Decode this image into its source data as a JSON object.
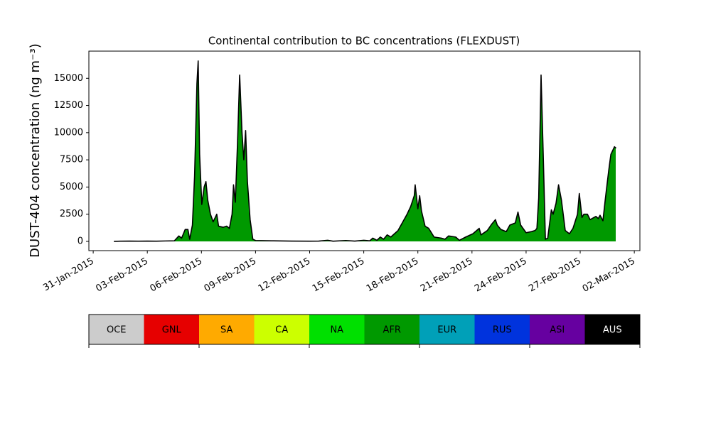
{
  "chart_data": {
    "type": "stackedarea",
    "title": "Continental contribution to BC concentrations (FLEXDUST)",
    "ylabel": "DUST-404 concentration (ng m⁻³)",
    "x": [
      1.17,
      1.5,
      2.0,
      2.5,
      3.0,
      3.5,
      4.0,
      4.5,
      4.75,
      4.9,
      5.1,
      5.25,
      5.35,
      5.5,
      5.62,
      5.75,
      5.82,
      5.9,
      6.02,
      6.15,
      6.25,
      6.35,
      6.5,
      6.65,
      6.85,
      6.95,
      7.2,
      7.4,
      7.55,
      7.7,
      7.78,
      7.88,
      8.0,
      8.12,
      8.25,
      8.35,
      8.45,
      8.55,
      8.7,
      8.85,
      9.0,
      10.0,
      11.0,
      12.0,
      12.5,
      13.0,
      13.3,
      14.0,
      14.5,
      15.0,
      15.33,
      15.5,
      15.73,
      15.92,
      16.1,
      16.3,
      16.5,
      16.7,
      16.9,
      17.1,
      17.4,
      17.6,
      17.8,
      17.85,
      18.0,
      18.1,
      18.2,
      18.4,
      18.6,
      18.9,
      19.3,
      19.5,
      19.7,
      20.1,
      20.3,
      20.65,
      21.05,
      21.4,
      21.5,
      21.85,
      22.1,
      22.3,
      22.4,
      22.6,
      22.9,
      23.1,
      23.4,
      23.55,
      23.7,
      24.0,
      24.3,
      24.5,
      24.6,
      24.7,
      24.83,
      24.95,
      25.07,
      25.2,
      25.4,
      25.5,
      25.66,
      25.8,
      25.96,
      26.17,
      26.4,
      26.6,
      26.85,
      26.95,
      27.1,
      27.2,
      27.4,
      27.55,
      27.87,
      28.0,
      28.1,
      28.26,
      28.4,
      28.58,
      28.7,
      28.9,
      28.97
    ],
    "series": [
      {
        "name": "OCE",
        "color": "#cccccc",
        "values": [
          0,
          0,
          0,
          0,
          0,
          0,
          0,
          0,
          0,
          0,
          0,
          0,
          0,
          0,
          0,
          0,
          0,
          0,
          0,
          0,
          0,
          0,
          0,
          0,
          0,
          0,
          0,
          0,
          0,
          0,
          0,
          0,
          0,
          0,
          0,
          0,
          0,
          0,
          0,
          0,
          0,
          0,
          0,
          0,
          0,
          0,
          0,
          0,
          0,
          0,
          0,
          0,
          0,
          0,
          0,
          0,
          0,
          0,
          0,
          0,
          0,
          0,
          0,
          0,
          0,
          0,
          0,
          0,
          0,
          0,
          0,
          0,
          0,
          0,
          0,
          0,
          0,
          0,
          0,
          0,
          0,
          0,
          0,
          0,
          0,
          0,
          0,
          0,
          0,
          0,
          0,
          0,
          0,
          0,
          0,
          0,
          0,
          0,
          0,
          0,
          0,
          0,
          0,
          0,
          0,
          0,
          0,
          0,
          0,
          0,
          0,
          0,
          0,
          0,
          0,
          0,
          0,
          0,
          0,
          0,
          0
        ]
      },
      {
        "name": "GNL",
        "color": "#e60000",
        "values": [
          0,
          0,
          0,
          0,
          0,
          0,
          0,
          0,
          0,
          0,
          0,
          0,
          0,
          0,
          0,
          0,
          0,
          0,
          0,
          0,
          0,
          0,
          0,
          0,
          0,
          0,
          0,
          0,
          0,
          0,
          0,
          0,
          0,
          0,
          0,
          0,
          0,
          0,
          0,
          0,
          0,
          0,
          0,
          0,
          0,
          0,
          0,
          0,
          0,
          0,
          0,
          0,
          0,
          0,
          0,
          0,
          0,
          0,
          0,
          0,
          0,
          0,
          0,
          0,
          0,
          0,
          0,
          0,
          0,
          0,
          0,
          0,
          0,
          0,
          0,
          0,
          0,
          0,
          0,
          0,
          0,
          0,
          0,
          0,
          0,
          0,
          0,
          0,
          0,
          0,
          0,
          0,
          0,
          0,
          0,
          0,
          0,
          0,
          0,
          0,
          0,
          0,
          0,
          0,
          0,
          0,
          0,
          0,
          0,
          0,
          0,
          0,
          0,
          0,
          0,
          0,
          0,
          0,
          0,
          0,
          0
        ]
      },
      {
        "name": "SA",
        "color": "#ffaa00",
        "values": [
          0,
          0,
          0,
          0,
          0,
          0,
          0,
          0,
          0,
          0,
          0,
          0,
          0,
          0,
          0,
          0,
          0,
          0,
          0,
          0,
          0,
          0,
          0,
          0,
          0,
          0,
          0,
          0,
          0,
          0,
          0,
          0,
          0,
          0,
          0,
          0,
          0,
          0,
          0,
          0,
          0,
          0,
          0,
          0,
          0,
          0,
          0,
          0,
          0,
          0,
          0,
          0,
          0,
          0,
          0,
          0,
          0,
          0,
          0,
          0,
          0,
          0,
          0,
          0,
          0,
          0,
          0,
          0,
          0,
          0,
          0,
          0,
          0,
          0,
          0,
          0,
          0,
          0,
          0,
          0,
          0,
          0,
          0,
          0,
          0,
          0,
          0,
          0,
          0,
          0,
          0,
          0,
          0,
          0,
          0,
          0,
          0,
          0,
          0,
          0,
          0,
          0,
          0,
          0,
          0,
          0,
          0,
          0,
          0,
          0,
          0,
          0,
          0,
          0,
          0,
          0,
          0,
          0,
          0,
          0,
          0
        ]
      },
      {
        "name": "CA",
        "color": "#ccff00",
        "values": [
          0,
          0,
          0,
          0,
          0,
          0,
          0,
          0,
          0,
          0,
          0,
          0,
          0,
          0,
          0,
          0,
          0,
          0,
          0,
          0,
          0,
          0,
          0,
          0,
          0,
          0,
          0,
          0,
          0,
          0,
          0,
          0,
          0,
          0,
          0,
          0,
          0,
          0,
          0,
          0,
          0,
          0,
          0,
          0,
          0,
          0,
          0,
          0,
          0,
          0,
          0,
          0,
          0,
          0,
          0,
          0,
          0,
          0,
          0,
          0,
          0,
          0,
          0,
          0,
          0,
          0,
          0,
          0,
          0,
          0,
          0,
          0,
          0,
          0,
          0,
          0,
          0,
          0,
          0,
          0,
          0,
          0,
          0,
          0,
          0,
          0,
          0,
          0,
          0,
          0,
          0,
          0,
          0,
          0,
          0,
          0,
          0,
          0,
          0,
          0,
          0,
          0,
          0,
          0,
          0,
          0,
          0,
          0,
          0,
          0,
          0,
          0,
          0,
          0,
          0,
          0,
          0,
          0,
          0,
          0,
          0
        ]
      },
      {
        "name": "NA",
        "color": "#00e000",
        "values": [
          0,
          0,
          0,
          0,
          0,
          0,
          0,
          0,
          0,
          0,
          0,
          0,
          0,
          0,
          0,
          0,
          0,
          0,
          0,
          0,
          0,
          0,
          0,
          0,
          0,
          0,
          0,
          0,
          0,
          0,
          0,
          0,
          0,
          0,
          0,
          0,
          0,
          0,
          0,
          0,
          0,
          0,
          0,
          0,
          0,
          0,
          0,
          0,
          0,
          0,
          0,
          0,
          0,
          0,
          0,
          0,
          0,
          0,
          0,
          0,
          0,
          0,
          0,
          0,
          0,
          0,
          0,
          0,
          0,
          0,
          0,
          0,
          0,
          0,
          0,
          0,
          0,
          0,
          0,
          0,
          0,
          0,
          0,
          0,
          0,
          0,
          0,
          0,
          0,
          0,
          0,
          0,
          0,
          0,
          0,
          0,
          0,
          0,
          0,
          0,
          0,
          0,
          0,
          0,
          0,
          0,
          0,
          0,
          0,
          0,
          0,
          0,
          0,
          0,
          0,
          0,
          0,
          0,
          0,
          0,
          0
        ]
      },
      {
        "name": "AFR",
        "color": "#009900",
        "values": [
          0,
          20,
          30,
          20,
          30,
          20,
          40,
          50,
          500,
          300,
          1100,
          1100,
          200,
          1500,
          6000,
          14500,
          16600,
          8000,
          3400,
          5000,
          5500,
          3800,
          2500,
          1800,
          2500,
          1400,
          1300,
          1400,
          1200,
          2500,
          5200,
          3600,
          9000,
          15300,
          10000,
          7500,
          10200,
          5500,
          2000,
          200,
          80,
          50,
          30,
          20,
          30,
          100,
          20,
          80,
          30,
          100,
          50,
          300,
          100,
          400,
          200,
          600,
          400,
          700,
          1000,
          1600,
          2500,
          3200,
          4200,
          5200,
          3000,
          4200,
          2800,
          1400,
          1200,
          400,
          300,
          200,
          500,
          400,
          100,
          400,
          700,
          1200,
          600,
          1000,
          1600,
          2000,
          1500,
          1100,
          900,
          1500,
          1700,
          2700,
          1500,
          800,
          900,
          1000,
          1200,
          4000,
          15300,
          8000,
          200,
          300,
          2900,
          2500,
          3500,
          5200,
          3800,
          1000,
          700,
          1200,
          2500,
          4400,
          2200,
          2500,
          2500,
          2000,
          2300,
          2100,
          2400,
          1900,
          4000,
          6500,
          8000,
          8700,
          8600
        ]
      },
      {
        "name": "EUR",
        "color": "#00a0b8",
        "values": [
          0,
          0,
          0,
          0,
          0,
          0,
          0,
          0,
          0,
          0,
          0,
          0,
          0,
          0,
          0,
          0,
          0,
          0,
          0,
          0,
          0,
          0,
          0,
          0,
          0,
          0,
          0,
          0,
          0,
          0,
          0,
          0,
          0,
          0,
          0,
          0,
          0,
          0,
          0,
          0,
          0,
          0,
          0,
          0,
          0,
          0,
          0,
          0,
          0,
          0,
          0,
          0,
          0,
          0,
          0,
          0,
          0,
          0,
          0,
          0,
          0,
          0,
          0,
          0,
          0,
          0,
          0,
          0,
          0,
          0,
          0,
          0,
          0,
          0,
          0,
          0,
          0,
          0,
          0,
          0,
          0,
          0,
          0,
          0,
          0,
          0,
          0,
          0,
          0,
          0,
          0,
          0,
          0,
          0,
          0,
          0,
          0,
          0,
          0,
          0,
          0,
          0,
          0,
          0,
          0,
          0,
          0,
          0,
          0,
          0,
          0,
          0,
          0,
          0,
          0,
          0,
          0,
          0,
          0,
          0,
          0
        ]
      },
      {
        "name": "RUS",
        "color": "#0033dd",
        "values": [
          0,
          0,
          0,
          0,
          0,
          0,
          0,
          0,
          0,
          0,
          0,
          0,
          0,
          0,
          0,
          0,
          0,
          0,
          0,
          0,
          0,
          0,
          0,
          0,
          0,
          0,
          0,
          0,
          0,
          0,
          0,
          0,
          0,
          0,
          0,
          0,
          0,
          0,
          0,
          0,
          0,
          0,
          0,
          0,
          0,
          0,
          0,
          0,
          0,
          0,
          0,
          0,
          0,
          0,
          0,
          0,
          0,
          0,
          0,
          0,
          0,
          0,
          0,
          0,
          0,
          0,
          0,
          0,
          0,
          0,
          0,
          0,
          0,
          0,
          0,
          0,
          0,
          0,
          0,
          0,
          0,
          0,
          0,
          0,
          0,
          0,
          0,
          0,
          0,
          0,
          0,
          0,
          0,
          0,
          0,
          0,
          0,
          0,
          0,
          0,
          0,
          0,
          0,
          0,
          0,
          0,
          0,
          0,
          0,
          0,
          0,
          0,
          0,
          0,
          0,
          0,
          0,
          0,
          0,
          0,
          0
        ]
      },
      {
        "name": "ASI",
        "color": "#6600a0",
        "values": [
          0,
          0,
          0,
          0,
          0,
          0,
          0,
          0,
          0,
          0,
          0,
          0,
          0,
          0,
          0,
          0,
          0,
          0,
          0,
          0,
          0,
          0,
          0,
          0,
          0,
          0,
          0,
          0,
          0,
          0,
          0,
          0,
          0,
          0,
          0,
          0,
          0,
          0,
          0,
          0,
          0,
          0,
          0,
          0,
          0,
          0,
          0,
          0,
          0,
          0,
          0,
          0,
          0,
          0,
          0,
          0,
          0,
          0,
          0,
          0,
          0,
          0,
          0,
          0,
          0,
          0,
          0,
          0,
          0,
          0,
          0,
          0,
          0,
          0,
          0,
          0,
          0,
          0,
          0,
          0,
          0,
          0,
          0,
          0,
          0,
          0,
          0,
          0,
          0,
          0,
          0,
          0,
          0,
          0,
          0,
          0,
          0,
          0,
          0,
          0,
          0,
          0,
          0,
          0,
          0,
          0,
          0,
          0,
          0,
          0,
          0,
          0,
          0,
          0,
          0,
          0,
          0,
          0,
          0,
          0,
          0
        ]
      },
      {
        "name": "AUS",
        "color": "#000000",
        "values": [
          0,
          0,
          0,
          0,
          0,
          0,
          0,
          0,
          0,
          0,
          0,
          0,
          0,
          0,
          0,
          0,
          0,
          0,
          0,
          0,
          0,
          0,
          0,
          0,
          0,
          0,
          0,
          0,
          0,
          0,
          0,
          0,
          0,
          0,
          0,
          0,
          0,
          0,
          0,
          0,
          0,
          0,
          0,
          0,
          0,
          0,
          0,
          0,
          0,
          0,
          0,
          0,
          0,
          0,
          0,
          0,
          0,
          0,
          0,
          0,
          0,
          0,
          0,
          0,
          0,
          0,
          0,
          0,
          0,
          0,
          0,
          0,
          0,
          0,
          0,
          0,
          0,
          0,
          0,
          0,
          0,
          0,
          0,
          0,
          0,
          0,
          0,
          0,
          0,
          0,
          0,
          0,
          0,
          0,
          0,
          0,
          0,
          0,
          0,
          0,
          0,
          0,
          0,
          0,
          0,
          0,
          0,
          0,
          0,
          0,
          0,
          0,
          0,
          0,
          0,
          0,
          0,
          0,
          0,
          0,
          0
        ]
      }
    ],
    "xlim": [
      -0.24,
      30.31
    ],
    "xticks": [
      {
        "value": 0,
        "label": "31-Jan-2015"
      },
      {
        "value": 3,
        "label": "03-Feb-2015"
      },
      {
        "value": 6,
        "label": "06-Feb-2015"
      },
      {
        "value": 9,
        "label": "09-Feb-2015"
      },
      {
        "value": 12,
        "label": "12-Feb-2015"
      },
      {
        "value": 15,
        "label": "15-Feb-2015"
      },
      {
        "value": 18,
        "label": "18-Feb-2015"
      },
      {
        "value": 21,
        "label": "21-Feb-2015"
      },
      {
        "value": 24,
        "label": "24-Feb-2015"
      },
      {
        "value": 27,
        "label": "27-Feb-2015"
      },
      {
        "value": 30,
        "label": "02-Mar-2015"
      }
    ],
    "ylim": [
      -850,
      17500
    ],
    "yticks": [
      0,
      2500,
      5000,
      7500,
      10000,
      12500,
      15000
    ],
    "grid": false
  }
}
